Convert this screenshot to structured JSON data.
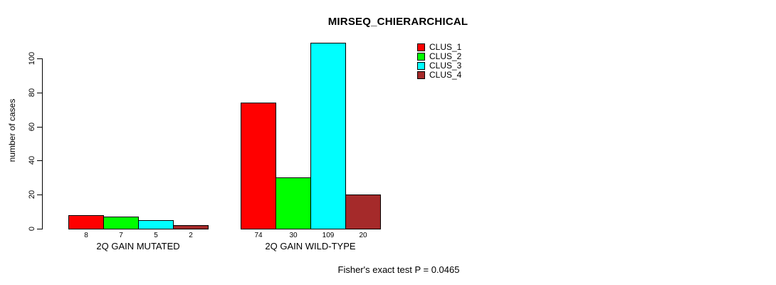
{
  "page": {
    "background": "#FFFFFF"
  },
  "chart_data": {
    "type": "bar",
    "title": "MIRSEQ_CHIERARCHICAL",
    "ylabel": "number of cases",
    "xlabel": "",
    "categories": [
      "2Q GAIN MUTATED",
      "2Q GAIN WILD-TYPE"
    ],
    "series": [
      {
        "name": "CLUS_1",
        "color": "#FF0000",
        "values": [
          8,
          74
        ]
      },
      {
        "name": "CLUS_2",
        "color": "#00FF00",
        "values": [
          7,
          30
        ]
      },
      {
        "name": "CLUS_3",
        "color": "#00FFFF",
        "values": [
          5,
          109
        ]
      },
      {
        "name": "CLUS_4",
        "color": "#A52A2A",
        "values": [
          2,
          20
        ]
      }
    ],
    "value_labels": [
      [
        "8",
        "7",
        "5",
        "2"
      ],
      [
        "74",
        "30",
        "109",
        "20"
      ]
    ],
    "yticks": [
      0,
      20,
      40,
      60,
      80,
      100
    ],
    "ylim": [
      0,
      109
    ],
    "grid": false,
    "bar_border_color": "#000000",
    "axis_color": "#000000",
    "legend_position": "top-right",
    "legend_entries": [
      "CLUS_1",
      "CLUS_2",
      "CLUS_3",
      "CLUS_4"
    ],
    "annotation": "Fisher's exact test P = 0.0465"
  }
}
